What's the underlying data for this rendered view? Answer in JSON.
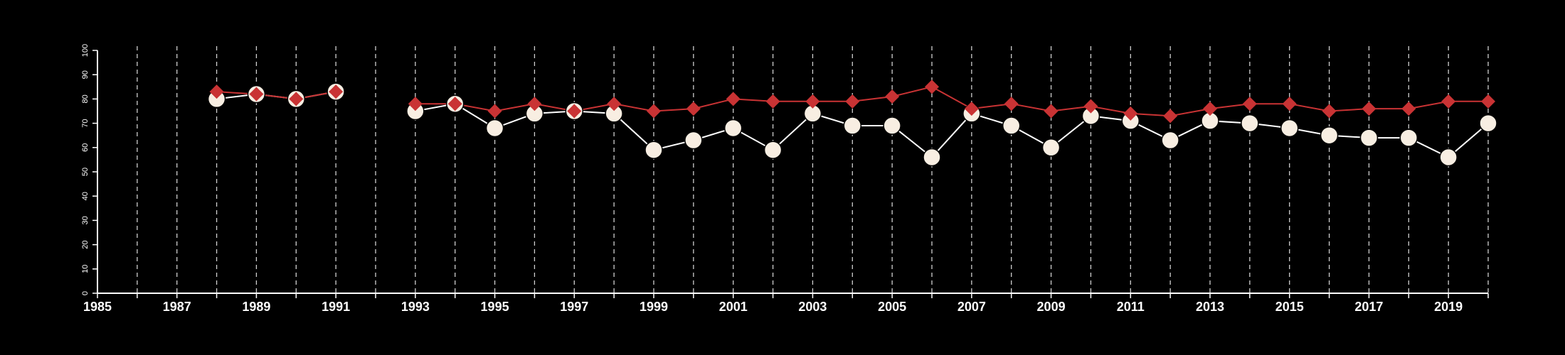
{
  "chart_data": {
    "type": "line",
    "title": "",
    "xlabel": "",
    "ylabel": "",
    "grid": "vertical dashed lines at each year",
    "legend": "none",
    "xlim": [
      1985,
      2020
    ],
    "ylim": [
      0,
      100
    ],
    "x_ticks": [
      1985,
      1987,
      1989,
      1991,
      1993,
      1995,
      1997,
      1999,
      2001,
      2003,
      2005,
      2007,
      2009,
      2011,
      2013,
      2015,
      2017,
      2019
    ],
    "y_ticks": [
      0,
      10,
      20,
      30,
      40,
      50,
      60,
      70,
      80,
      90,
      100
    ],
    "x": [
      1988,
      1989,
      1990,
      1991,
      1992,
      1993,
      1994,
      1995,
      1996,
      1997,
      1998,
      1999,
      2000,
      2001,
      2002,
      2003,
      2004,
      2005,
      2006,
      2007,
      2008,
      2009,
      2010,
      2011,
      2012,
      2013,
      2014,
      2015,
      2016,
      2017,
      2018,
      2019,
      2020
    ],
    "series": [
      {
        "marker": "circle",
        "line_color": "#ffffff",
        "marker_color": "#f8eee2",
        "values": [
          80,
          82,
          80,
          83,
          null,
          75,
          78,
          68,
          74,
          75,
          74,
          59,
          63,
          68,
          59,
          74,
          69,
          69,
          56,
          74,
          69,
          60,
          73,
          71,
          63,
          71,
          70,
          68,
          65,
          64,
          64,
          56,
          70
        ]
      },
      {
        "marker": "diamond",
        "line_color": "#c93334",
        "marker_color": "#c93334",
        "values": [
          83,
          82,
          80,
          83,
          null,
          78,
          78,
          75,
          78,
          75,
          78,
          75,
          76,
          80,
          79,
          79,
          79,
          81,
          85,
          76,
          78,
          75,
          77,
          74,
          73,
          76,
          78,
          78,
          75,
          76,
          76,
          79,
          79
        ]
      }
    ]
  }
}
